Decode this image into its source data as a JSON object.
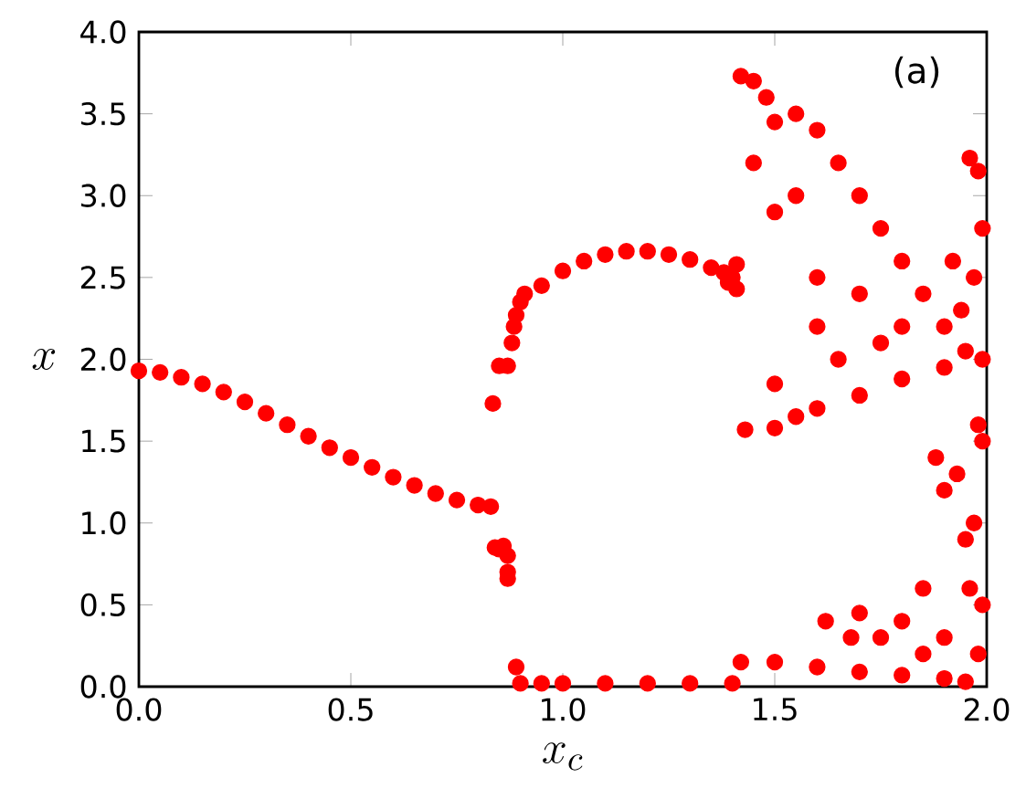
{
  "chart_data": {
    "type": "scatter",
    "xlabel": "x_c",
    "ylabel": "x",
    "annotations": [
      "(a)"
    ],
    "marker": "circle",
    "xlim": [
      0,
      2
    ],
    "ylim": [
      0,
      4
    ],
    "xticks": [
      {
        "value": 0,
        "label": "0.0"
      },
      {
        "value": 0.5,
        "label": "0.5"
      },
      {
        "value": 1,
        "label": "1.0"
      },
      {
        "value": 1.5,
        "label": "1.5"
      },
      {
        "value": 2,
        "label": "2.0"
      }
    ],
    "yticks": [
      {
        "value": 0,
        "label": "0.0"
      },
      {
        "value": 0.5,
        "label": "0.5"
      },
      {
        "value": 1,
        "label": "1.0"
      },
      {
        "value": 1.5,
        "label": "1.5"
      },
      {
        "value": 2,
        "label": "2.0"
      },
      {
        "value": 2.5,
        "label": "2.5"
      },
      {
        "value": 3,
        "label": "3.0"
      },
      {
        "value": 3.5,
        "label": "3.5"
      },
      {
        "value": 4,
        "label": "4.0"
      }
    ],
    "series": [
      {
        "color": "#ff0000",
        "x": [
          0,
          0.05,
          0.1,
          0.15,
          0.2,
          0.25,
          0.3,
          0.35,
          0.4,
          0.45,
          0.5,
          0.55,
          0.6,
          0.65,
          0.7,
          0.75,
          0.8,
          0.83,
          0.84,
          0.85,
          0.86,
          0.87,
          0.87,
          0.87,
          0.835,
          0.85,
          0.87,
          0.88,
          0.885,
          0.89,
          0.9,
          0.91,
          0.89,
          0.9,
          0.95,
          1.0,
          1.05,
          1.1,
          1.15,
          1.2,
          1.25,
          1.3,
          1.35,
          1.38,
          1.4,
          1.41,
          1.41,
          1.39,
          0.95,
          1.0,
          1.1,
          1.2,
          1.3,
          1.4,
          1.42,
          1.45,
          1.48,
          1.5,
          1.55,
          1.6,
          1.65,
          1.7,
          1.75,
          1.8,
          1.85,
          1.9,
          1.95,
          1.43,
          1.5,
          1.55,
          1.6,
          1.7,
          1.8,
          1.9,
          1.6,
          1.7,
          1.8,
          1.65,
          1.75,
          1.55,
          1.6,
          1.5,
          1.45,
          1.5,
          1.42,
          1.5,
          1.6,
          1.7,
          1.8,
          1.9,
          1.95,
          1.75,
          1.8,
          1.85,
          1.88,
          1.9,
          1.93,
          1.95,
          1.96,
          1.98,
          1.99,
          1.97,
          1.99,
          1.98,
          1.97,
          1.99,
          1.98,
          1.99,
          1.96,
          1.9,
          1.85,
          1.92,
          1.94,
          1.7,
          1.68,
          1.62
        ],
        "values": [
          1.93,
          1.92,
          1.89,
          1.85,
          1.8,
          1.74,
          1.67,
          1.6,
          1.53,
          1.46,
          1.4,
          1.34,
          1.28,
          1.23,
          1.18,
          1.14,
          1.11,
          1.1,
          0.85,
          0.84,
          0.86,
          0.8,
          0.7,
          0.66,
          1.73,
          1.96,
          1.96,
          2.1,
          2.2,
          2.27,
          2.35,
          2.4,
          0.12,
          0.02,
          2.45,
          2.54,
          2.6,
          2.64,
          2.66,
          2.66,
          2.64,
          2.61,
          2.56,
          2.53,
          2.5,
          2.58,
          2.43,
          2.47,
          0.02,
          0.02,
          0.02,
          0.02,
          0.02,
          0.02,
          3.73,
          3.7,
          3.6,
          3.45,
          3.5,
          3.4,
          3.2,
          3.0,
          2.8,
          2.6,
          2.4,
          2.2,
          2.05,
          1.57,
          1.58,
          1.65,
          1.7,
          1.78,
          1.88,
          1.95,
          2.5,
          2.4,
          2.2,
          2.0,
          2.1,
          3.0,
          2.2,
          1.85,
          3.2,
          2.9,
          0.15,
          0.15,
          0.12,
          0.09,
          0.07,
          0.05,
          0.03,
          0.3,
          0.4,
          0.6,
          1.4,
          1.2,
          1.3,
          0.9,
          3.23,
          3.15,
          2.8,
          2.5,
          2.0,
          1.6,
          1.0,
          0.5,
          0.2,
          1.5,
          0.6,
          0.3,
          0.2,
          2.6,
          2.3,
          0.45,
          0.3,
          0.4
        ]
      }
    ]
  }
}
